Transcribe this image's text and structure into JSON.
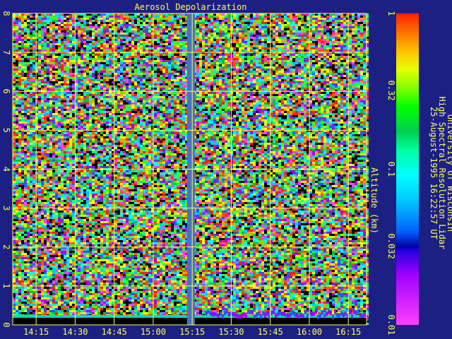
{
  "chart_data": {
    "type": "heatmap",
    "title": "Aerosol Depolarization",
    "ylabel": "Altitude (km)",
    "ylim": [
      0,
      8
    ],
    "y_ticks": [
      "0",
      "1",
      "2",
      "3",
      "4",
      "5",
      "6",
      "7",
      "8"
    ],
    "x_ticks": [
      "14:15",
      "14:30",
      "14:45",
      "15:00",
      "15:15",
      "15:30",
      "15:45",
      "16:00",
      "16:15"
    ],
    "x_range_utc": [
      "14:06",
      "16:22"
    ],
    "data_gap_utc": [
      "15:13",
      "15:16"
    ],
    "grid": true,
    "colorbar": {
      "scale": "log",
      "range": [
        0.01,
        1
      ],
      "tick_labels": [
        "1",
        "0.32",
        "0.1",
        "0.032",
        "0.01"
      ]
    },
    "attribution": [
      "University of Wisconsin",
      "High Spectral Resolution Lidar",
      "25-August-1995 16:22:57 UT"
    ]
  },
  "colors": {
    "background": "#1c2083",
    "axis_text": "#ffff54",
    "gap": "#4a72be",
    "grid": "#ffff54"
  }
}
